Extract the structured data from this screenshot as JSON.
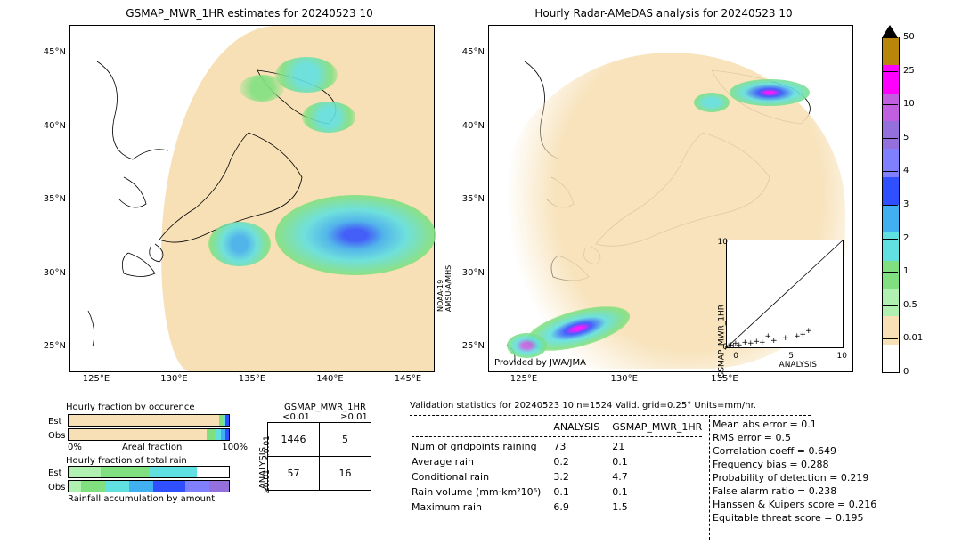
{
  "date": "20240523 10",
  "left_map": {
    "title": "GSMAP_MWR_1HR estimates for 20240523 10",
    "yticks": [
      "45°N",
      "40°N",
      "35°N",
      "30°N",
      "25°N"
    ],
    "xticks": [
      "125°E",
      "130°E",
      "135°E",
      "140°E",
      "145°E"
    ],
    "attribution": "NOAA-19\nAMSU-A/MHS",
    "swath_bg": "#f7e0b5"
  },
  "right_map": {
    "title": "Hourly Radar-AMeDAS analysis for 20240523 10",
    "yticks": [
      "45°N",
      "40°N",
      "35°N",
      "30°N",
      "25°N"
    ],
    "xticks": [
      "125°E",
      "130°E",
      "135°E"
    ],
    "attribution": "Provided by JWA/JMA"
  },
  "colorbar": {
    "ticks": [
      "50",
      "25",
      "10",
      "5",
      "4",
      "3",
      "2",
      "1",
      "0.5",
      "0.01",
      "0"
    ],
    "colors": [
      "#b8860b",
      "#ff00ff",
      "#c060e0",
      "#9370db",
      "#8080ff",
      "#3050ff",
      "#40b0f0",
      "#60e0e0",
      "#80e080",
      "#b0f0b0",
      "#f7e0b5",
      "#ffffff"
    ]
  },
  "scatter": {
    "xlabel": "ANALYSIS",
    "ylabel": "GSMAP_MWR_1HR",
    "xlim": [
      0,
      10
    ],
    "ylim": [
      0,
      10
    ],
    "ticks": [
      0,
      5,
      10
    ],
    "points": [
      [
        0.1,
        0.1
      ],
      [
        0.3,
        0.2
      ],
      [
        0.5,
        0.1
      ],
      [
        0.7,
        0.3
      ],
      [
        1.0,
        0.2
      ],
      [
        1.5,
        0.4
      ],
      [
        2.0,
        0.3
      ],
      [
        2.5,
        0.5
      ],
      [
        3.0,
        0.4
      ],
      [
        3.5,
        1.0
      ],
      [
        4.0,
        0.6
      ],
      [
        5.0,
        0.8
      ],
      [
        6.0,
        1.0
      ],
      [
        6.5,
        1.2
      ],
      [
        7.0,
        1.5
      ]
    ]
  },
  "occurrence": {
    "title": "Hourly fraction by occurence",
    "row_labels": [
      "Est",
      "Obs"
    ],
    "axis_label_left": "0%",
    "axis_label_mid": "Areal fraction",
    "axis_label_right": "100%",
    "est_colors": [
      [
        "#f7e0b5",
        0.94
      ],
      [
        "#80e080",
        0.02
      ],
      [
        "#60e0e0",
        0.02
      ],
      [
        "#3050ff",
        0.02
      ]
    ],
    "obs_colors": [
      [
        "#f7e0b5",
        0.86
      ],
      [
        "#80e080",
        0.05
      ],
      [
        "#60e0e0",
        0.04
      ],
      [
        "#40b0f0",
        0.03
      ],
      [
        "#3050ff",
        0.02
      ]
    ]
  },
  "total_rain": {
    "title": "Hourly fraction of total rain",
    "row_labels": [
      "Est",
      "Obs"
    ],
    "footer": "Rainfall accumulation by amount",
    "est_colors": [
      [
        "#b0f0b0",
        0.2
      ],
      [
        "#80e080",
        0.3
      ],
      [
        "#60e0e0",
        0.3
      ],
      [
        "#ffffff",
        0.2
      ]
    ],
    "obs_colors": [
      [
        "#b0f0b0",
        0.08
      ],
      [
        "#80e080",
        0.15
      ],
      [
        "#60e0e0",
        0.15
      ],
      [
        "#40b0f0",
        0.15
      ],
      [
        "#3050ff",
        0.2
      ],
      [
        "#8080ff",
        0.15
      ],
      [
        "#9370db",
        0.12
      ]
    ]
  },
  "contingency": {
    "col_header": "GSMAP_MWR_1HR",
    "row_header": "ANALYSIS",
    "col_labels": [
      "<0.01",
      "≥0.01"
    ],
    "row_labels": [
      "<0.01",
      "≥0.01"
    ],
    "cells": [
      [
        "1446",
        "5"
      ],
      [
        "57",
        "16"
      ]
    ]
  },
  "validation": {
    "header": "Validation statistics for 20240523 10  n=1524 Valid. grid=0.25°  Units=mm/hr.",
    "col_headers": [
      "ANALYSIS",
      "GSMAP_MWR_1HR"
    ],
    "rows": [
      [
        "Num of gridpoints raining",
        "73",
        "21"
      ],
      [
        "Average rain",
        "0.2",
        "0.1"
      ],
      [
        "Conditional rain",
        "3.2",
        "4.7"
      ],
      [
        "Rain volume (mm·km²10⁶)",
        "0.1",
        "0.1"
      ],
      [
        "Maximum rain",
        "6.9",
        "1.5"
      ]
    ],
    "right_stats": [
      [
        "Mean abs error =",
        "0.1"
      ],
      [
        "RMS error =",
        "0.5"
      ],
      [
        "Correlation coeff =",
        "0.649"
      ],
      [
        "Frequency bias =",
        "0.288"
      ],
      [
        "Probability of detection =",
        "0.219"
      ],
      [
        "False alarm ratio =",
        "0.238"
      ],
      [
        "Hanssen & Kuipers score =",
        "0.216"
      ],
      [
        "Equitable threat score =",
        "0.195"
      ]
    ]
  }
}
